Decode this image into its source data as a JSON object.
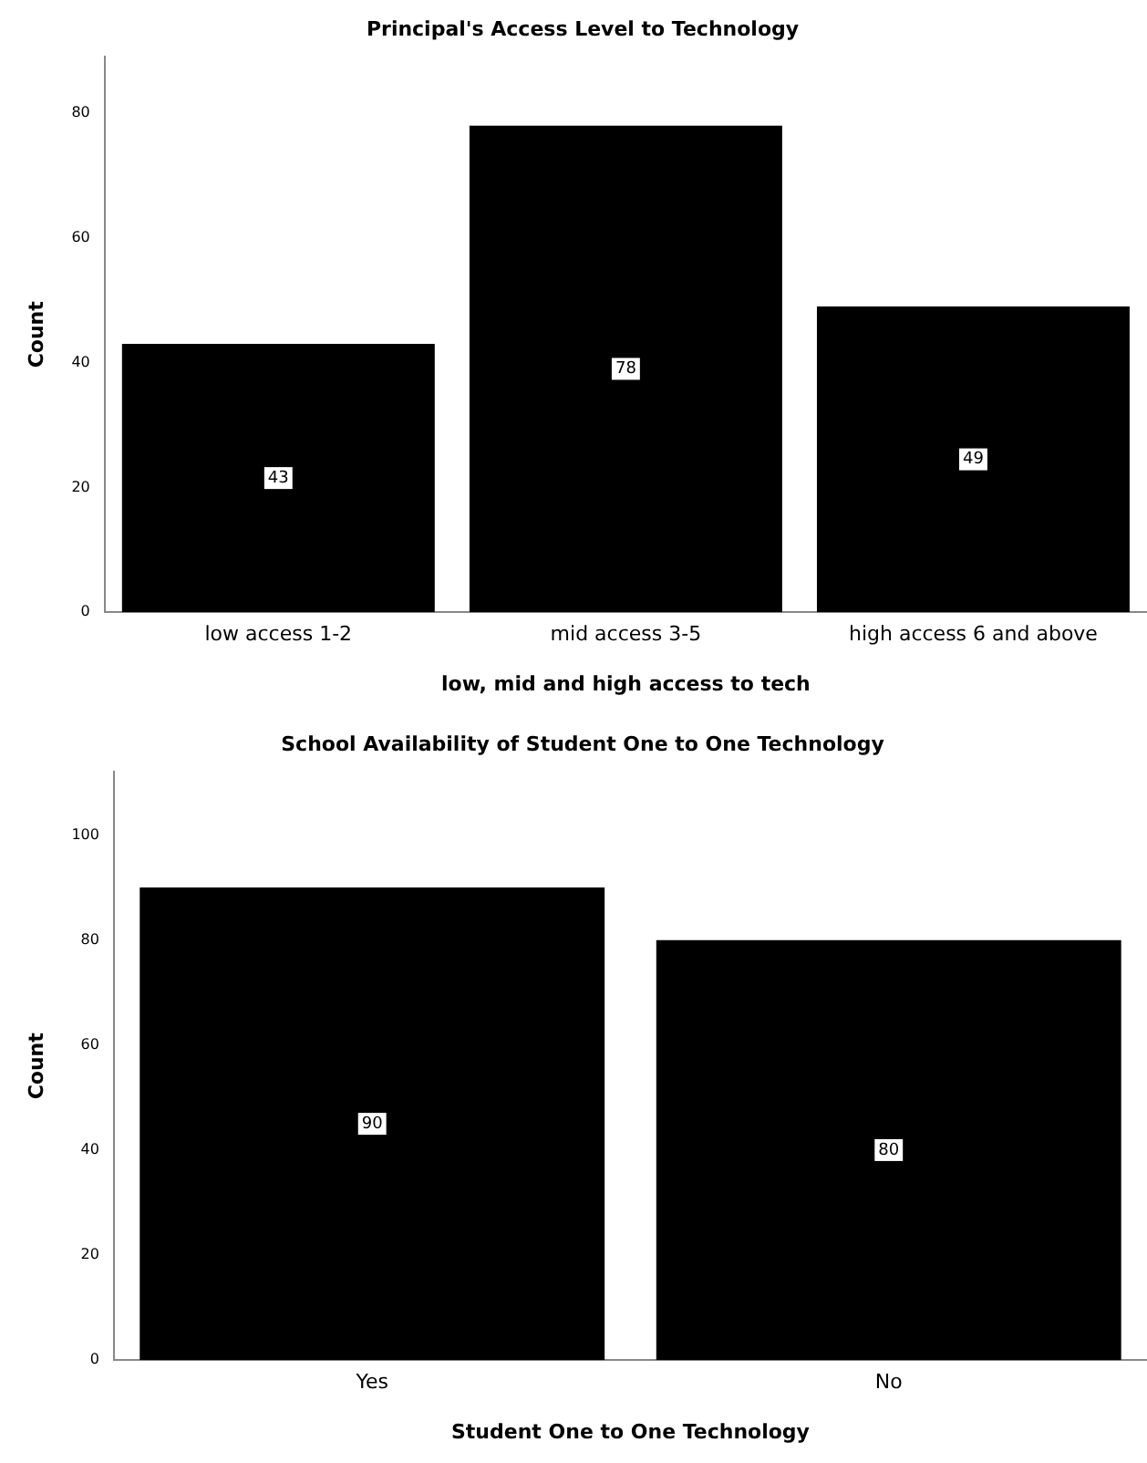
{
  "chart_data": [
    {
      "type": "bar",
      "title": "Principal's Access Level to Technology",
      "xlabel": "low, mid and high access to tech",
      "ylabel": "Count",
      "categories": [
        "low access 1-2",
        "mid access 3-5",
        "high access 6 and above"
      ],
      "values": [
        43,
        78,
        49
      ],
      "color": "#000000",
      "ylim": [
        0,
        89
      ],
      "yticks": [
        0,
        20,
        40,
        60,
        80
      ],
      "grid": false,
      "legend": false,
      "data_labels": true
    },
    {
      "type": "bar",
      "title": "School Availability of Student One to One Technology",
      "xlabel": "Student One to One Technology",
      "ylabel": "Count",
      "categories": [
        "Yes",
        "No"
      ],
      "values": [
        90,
        80
      ],
      "color": "#000000",
      "ylim": [
        0,
        112
      ],
      "yticks": [
        0,
        20,
        40,
        60,
        80,
        100
      ],
      "grid": false,
      "legend": false,
      "data_labels": true
    }
  ]
}
